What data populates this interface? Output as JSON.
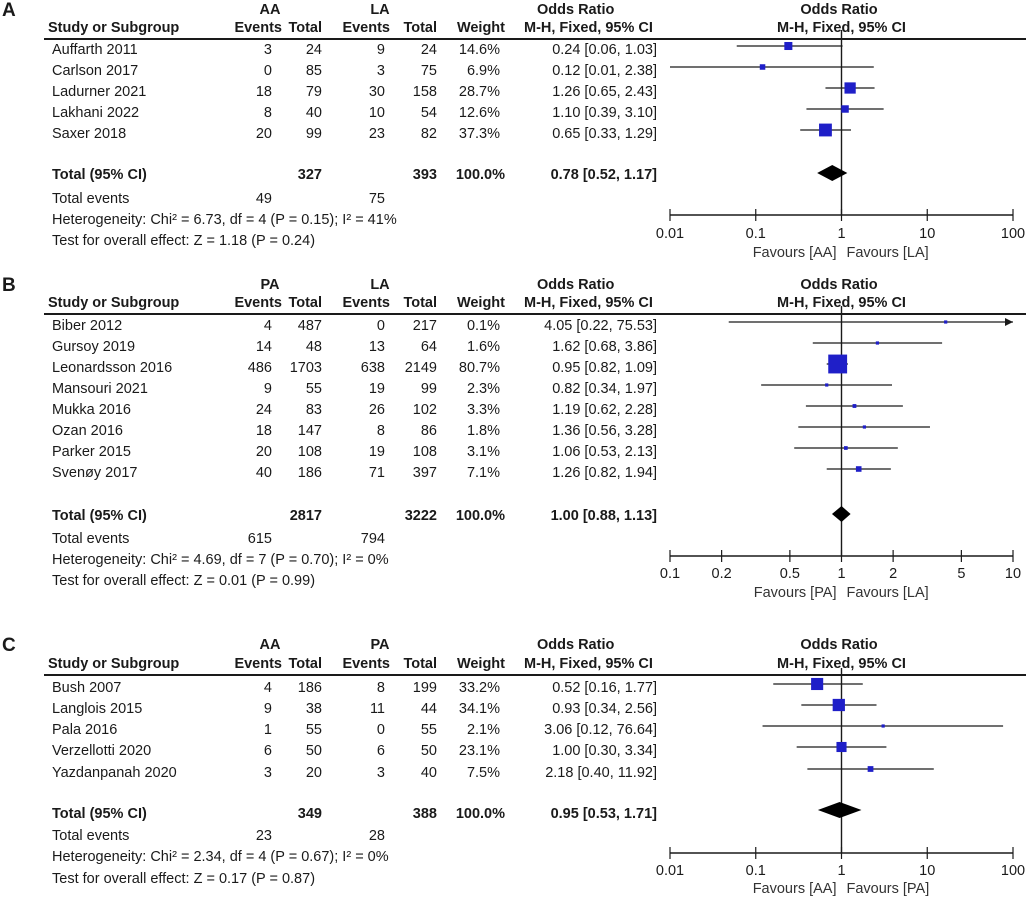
{
  "chart_data": [
    {
      "type": "forest",
      "panel_label": "A",
      "groups": [
        "AA",
        "LA"
      ],
      "col_headers": {
        "study": "Study or Subgroup",
        "events": "Events",
        "total": "Total",
        "weight": "Weight",
        "or_title": "Odds Ratio",
        "or_method": "M-H, Fixed, 95% CI"
      },
      "plot_header": {
        "title": "Odds Ratio",
        "method": "M-H, Fixed, 95% CI"
      },
      "studies": [
        {
          "name": "Auffarth 2011",
          "e1": "3",
          "n1": "24",
          "e2": "9",
          "n2": "24",
          "weight": "14.6%",
          "ci_text": "0.24 [0.06, 1.03]",
          "or": 0.24,
          "lo": 0.06,
          "hi": 1.03,
          "w": 14.6
        },
        {
          "name": "Carlson 2017",
          "e1": "0",
          "n1": "85",
          "e2": "3",
          "n2": "75",
          "weight": "6.9%",
          "ci_text": "0.12 [0.01, 2.38]",
          "or": 0.12,
          "lo": 0.01,
          "hi": 2.38,
          "w": 6.9
        },
        {
          "name": "Ladurner 2021",
          "e1": "18",
          "n1": "79",
          "e2": "30",
          "n2": "158",
          "weight": "28.7%",
          "ci_text": "1.26 [0.65, 2.43]",
          "or": 1.26,
          "lo": 0.65,
          "hi": 2.43,
          "w": 28.7
        },
        {
          "name": "Lakhani 2022",
          "e1": "8",
          "n1": "40",
          "e2": "10",
          "n2": "54",
          "weight": "12.6%",
          "ci_text": "1.10 [0.39, 3.10]",
          "or": 1.1,
          "lo": 0.39,
          "hi": 3.1,
          "w": 12.6
        },
        {
          "name": "Saxer 2018",
          "e1": "20",
          "n1": "99",
          "e2": "23",
          "n2": "82",
          "weight": "37.3%",
          "ci_text": "0.65 [0.33, 1.29]",
          "or": 0.65,
          "lo": 0.33,
          "hi": 1.29,
          "w": 37.3
        }
      ],
      "total": {
        "label": "Total (95% CI)",
        "n1": "327",
        "n2": "393",
        "weight": "100.0%",
        "ci_text": "0.78 [0.52, 1.17]",
        "or": 0.78,
        "lo": 0.52,
        "hi": 1.17
      },
      "total_events": {
        "label": "Total events",
        "e1": "49",
        "e2": "75"
      },
      "heterogeneity": "Heterogeneity: Chi² = 6.73, df = 4 (P = 0.15); I² = 41%",
      "overall_effect": "Test for overall effect: Z = 1.18 (P = 0.24)",
      "xscale": "log",
      "xlim": [
        0.01,
        100
      ],
      "ticks": [
        0.01,
        0.1,
        1,
        10,
        100
      ],
      "tick_labels": [
        "0.01",
        "0.1",
        "1",
        "10",
        "100"
      ],
      "favours_left": "Favours [AA]",
      "favours_right": "Favours [LA]"
    },
    {
      "type": "forest",
      "panel_label": "B",
      "groups": [
        "PA",
        "LA"
      ],
      "col_headers": {
        "study": "Study or Subgroup",
        "events": "Events",
        "total": "Total",
        "weight": "Weight",
        "or_title": "Odds Ratio",
        "or_method": "M-H, Fixed, 95% CI"
      },
      "plot_header": {
        "title": "Odds Ratio",
        "method": "M-H, Fixed, 95% CI"
      },
      "studies": [
        {
          "name": "Biber 2012",
          "e1": "4",
          "n1": "487",
          "e2": "0",
          "n2": "217",
          "weight": "0.1%",
          "ci_text": "4.05 [0.22, 75.53]",
          "or": 4.05,
          "lo": 0.22,
          "hi": 75.53,
          "w": 0.1
        },
        {
          "name": "Gursoy 2019",
          "e1": "14",
          "n1": "48",
          "e2": "13",
          "n2": "64",
          "weight": "1.6%",
          "ci_text": "1.62 [0.68, 3.86]",
          "or": 1.62,
          "lo": 0.68,
          "hi": 3.86,
          "w": 1.6
        },
        {
          "name": "Leonardsson 2016",
          "e1": "486",
          "n1": "1703",
          "e2": "638",
          "n2": "2149",
          "weight": "80.7%",
          "ci_text": "0.95 [0.82, 1.09]",
          "or": 0.95,
          "lo": 0.82,
          "hi": 1.09,
          "w": 80.7
        },
        {
          "name": "Mansouri 2021",
          "e1": "9",
          "n1": "55",
          "e2": "19",
          "n2": "99",
          "weight": "2.3%",
          "ci_text": "0.82 [0.34, 1.97]",
          "or": 0.82,
          "lo": 0.34,
          "hi": 1.97,
          "w": 2.3
        },
        {
          "name": "Mukka 2016",
          "e1": "24",
          "n1": "83",
          "e2": "26",
          "n2": "102",
          "weight": "3.3%",
          "ci_text": "1.19 [0.62, 2.28]",
          "or": 1.19,
          "lo": 0.62,
          "hi": 2.28,
          "w": 3.3
        },
        {
          "name": "Ozan 2016",
          "e1": "18",
          "n1": "147",
          "e2": "8",
          "n2": "86",
          "weight": "1.8%",
          "ci_text": "1.36 [0.56, 3.28]",
          "or": 1.36,
          "lo": 0.56,
          "hi": 3.28,
          "w": 1.8
        },
        {
          "name": "Parker 2015",
          "e1": "20",
          "n1": "108",
          "e2": "19",
          "n2": "108",
          "weight": "3.1%",
          "ci_text": "1.06 [0.53, 2.13]",
          "or": 1.06,
          "lo": 0.53,
          "hi": 2.13,
          "w": 3.1
        },
        {
          "name": "Svenøy 2017",
          "e1": "40",
          "n1": "186",
          "e2": "71",
          "n2": "397",
          "weight": "7.1%",
          "ci_text": "1.26 [0.82, 1.94]",
          "or": 1.26,
          "lo": 0.82,
          "hi": 1.94,
          "w": 7.1
        }
      ],
      "total": {
        "label": "Total (95% CI)",
        "n1": "2817",
        "n2": "3222",
        "weight": "100.0%",
        "ci_text": "1.00 [0.88, 1.13]",
        "or": 1.0,
        "lo": 0.88,
        "hi": 1.13
      },
      "total_events": {
        "label": "Total events",
        "e1": "615",
        "e2": "794"
      },
      "heterogeneity": "Heterogeneity: Chi² = 4.69, df = 7 (P = 0.70); I² = 0%",
      "overall_effect": "Test for overall effect: Z = 0.01 (P = 0.99)",
      "xscale": "log",
      "xlim": [
        0.1,
        10
      ],
      "ticks": [
        0.1,
        0.2,
        0.5,
        1,
        2,
        5,
        10
      ],
      "tick_labels": [
        "0.1",
        "0.2",
        "0.5",
        "1",
        "2",
        "5",
        "10"
      ],
      "favours_left": "Favours [PA]",
      "favours_right": "Favours [LA]"
    },
    {
      "type": "forest",
      "panel_label": "C",
      "groups": [
        "AA",
        "PA"
      ],
      "col_headers": {
        "study": "Study or Subgroup",
        "events": "Events",
        "total": "Total",
        "weight": "Weight",
        "or_title": "Odds Ratio",
        "or_method": "M-H, Fixed, 95% CI"
      },
      "plot_header": {
        "title": "Odds Ratio",
        "method": "M-H, Fixed, 95% CI"
      },
      "studies": [
        {
          "name": "Bush 2007",
          "e1": "4",
          "n1": "186",
          "e2": "8",
          "n2": "199",
          "weight": "33.2%",
          "ci_text": "0.52 [0.16, 1.77]",
          "or": 0.52,
          "lo": 0.16,
          "hi": 1.77,
          "w": 33.2
        },
        {
          "name": "Langlois 2015",
          "e1": "9",
          "n1": "38",
          "e2": "11",
          "n2": "44",
          "weight": "34.1%",
          "ci_text": "0.93 [0.34, 2.56]",
          "or": 0.93,
          "lo": 0.34,
          "hi": 2.56,
          "w": 34.1
        },
        {
          "name": "Pala 2016",
          "e1": "1",
          "n1": "55",
          "e2": "0",
          "n2": "55",
          "weight": "2.1%",
          "ci_text": "3.06 [0.12, 76.64]",
          "or": 3.06,
          "lo": 0.12,
          "hi": 76.64,
          "w": 2.1
        },
        {
          "name": "Verzellotti 2020",
          "e1": "6",
          "n1": "50",
          "e2": "6",
          "n2": "50",
          "weight": "23.1%",
          "ci_text": "1.00 [0.30, 3.34]",
          "or": 1.0,
          "lo": 0.3,
          "hi": 3.34,
          "w": 23.1
        },
        {
          "name": "Yazdanpanah 2020",
          "e1": "3",
          "n1": "20",
          "e2": "3",
          "n2": "40",
          "weight": "7.5%",
          "ci_text": "2.18 [0.40, 11.92]",
          "or": 2.18,
          "lo": 0.4,
          "hi": 11.92,
          "w": 7.5
        }
      ],
      "total": {
        "label": "Total (95% CI)",
        "n1": "349",
        "n2": "388",
        "weight": "100.0%",
        "ci_text": "0.95 [0.53, 1.71]",
        "or": 0.95,
        "lo": 0.53,
        "hi": 1.71
      },
      "total_events": {
        "label": "Total events",
        "e1": "23",
        "e2": "28"
      },
      "heterogeneity": "Heterogeneity: Chi² = 2.34, df = 4 (P = 0.67); I² = 0%",
      "overall_effect": "Test for overall effect: Z = 0.17 (P = 0.87)",
      "xscale": "log",
      "xlim": [
        0.01,
        100
      ],
      "ticks": [
        0.01,
        0.1,
        1,
        10,
        100
      ],
      "tick_labels": [
        "0.01",
        "0.1",
        "1",
        "10",
        "100"
      ],
      "favours_left": "Favours [AA]",
      "favours_right": "Favours [PA]"
    }
  ],
  "colors": {
    "marker": "#1f1fc8",
    "text": "#1a1a1a",
    "line": "#1a1a1a"
  }
}
